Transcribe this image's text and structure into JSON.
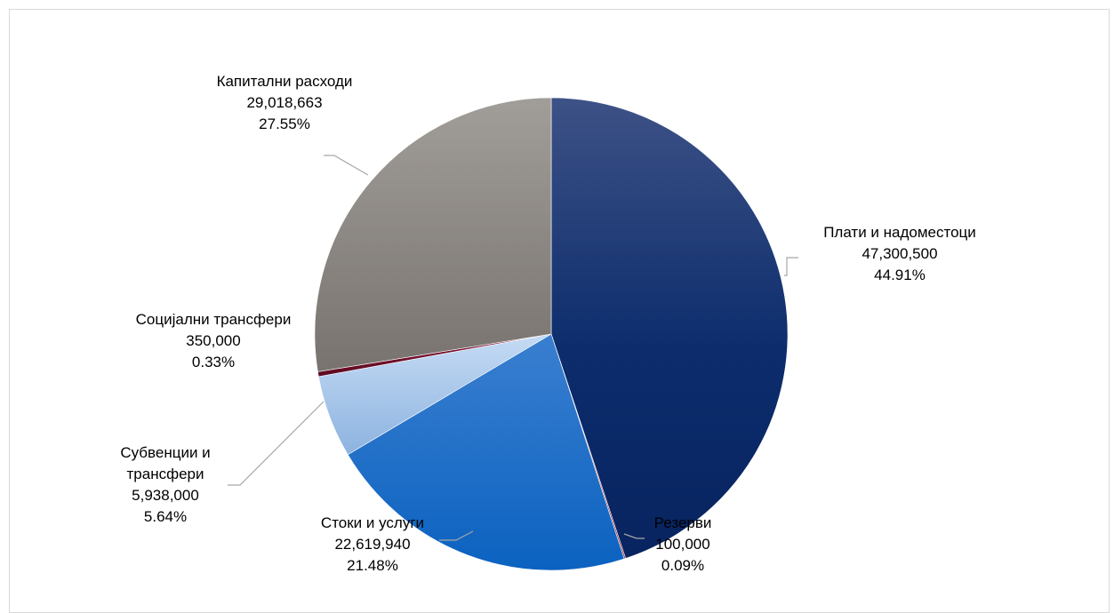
{
  "chart_data": {
    "type": "pie",
    "start_angle_deg": 0,
    "direction": "clockwise",
    "slices": [
      {
        "label": "Плати и надоместоци",
        "value": 47300500,
        "percent": "44.91%",
        "value_text": "47,300,500",
        "color": "#0a2a66"
      },
      {
        "label": "Резерви",
        "value": 100000,
        "percent": "0.09%",
        "value_text": "100,000",
        "color": "#b3263b"
      },
      {
        "label": "Стоки и услуги",
        "value": 22619940,
        "percent": "21.48%",
        "value_text": "22,619,940",
        "color": "#1565c0"
      },
      {
        "label": "Субвенции и трансфери",
        "value": 5938000,
        "percent": "5.64%",
        "value_text": "5,938,000",
        "color": "#a9c8ee"
      },
      {
        "label": "Социјални трансфери",
        "value": 350000,
        "percent": "0.33%",
        "value_text": "350,000",
        "color": "#7a1030"
      },
      {
        "label": "Капитални расходи",
        "value": 29018663,
        "percent": "27.55%",
        "value_text": "29,018,663",
        "color": "#8e8a84"
      }
    ]
  }
}
